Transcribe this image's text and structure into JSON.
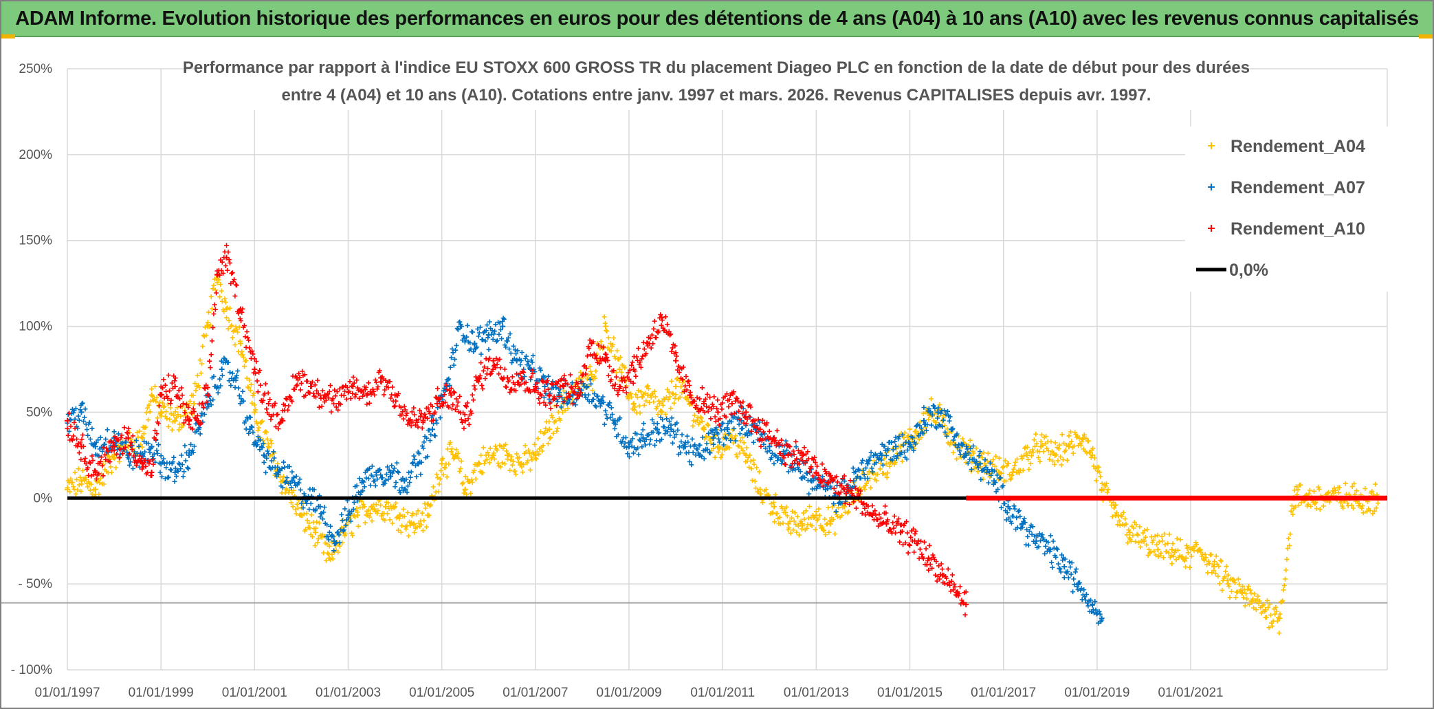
{
  "banner": {
    "title": "ADAM Informe. Evolution historique des performances en euros pour des détentions de 4 ans (A04) à 10 ans (A10) avec les revenus connus capitalisés"
  },
  "colors": {
    "A04": "#ffc000",
    "A07": "#0070c0",
    "A10": "#ff0000",
    "zero": "#000000",
    "banner": "#7dca7d"
  },
  "chart_data": {
    "type": "scatter",
    "title_line1": "Performance par rapport à l'indice EU STOXX 600 GROSS TR  du placement Diageo PLC en fonction de la date de début pour des durées",
    "title_line2": "entre 4 (A04) et 10 ans (A10). Cotations entre janv. 1997 et mars. 2026. Revenus CAPITALISES depuis avr. 1997.",
    "xlim": [
      1997.0,
      2025.2
    ],
    "ylim": [
      -100,
      250
    ],
    "x_ticks": [
      {
        "value": 1997,
        "label": "01/01/1997"
      },
      {
        "value": 1999,
        "label": "01/01/1999"
      },
      {
        "value": 2001,
        "label": "01/01/2001"
      },
      {
        "value": 2003,
        "label": "01/01/2003"
      },
      {
        "value": 2005,
        "label": "01/01/2005"
      },
      {
        "value": 2007,
        "label": "01/01/2007"
      },
      {
        "value": 2009,
        "label": "01/01/2009"
      },
      {
        "value": 2011,
        "label": "01/01/2011"
      },
      {
        "value": 2013,
        "label": "01/01/2013"
      },
      {
        "value": 2015,
        "label": "01/01/2015"
      },
      {
        "value": 2017,
        "label": "01/01/2017"
      },
      {
        "value": 2019,
        "label": "01/01/2019"
      },
      {
        "value": 2021,
        "label": "01/01/2021"
      }
    ],
    "y_ticks": [
      {
        "value": 250,
        "label": "250%"
      },
      {
        "value": 200,
        "label": "200%"
      },
      {
        "value": 150,
        "label": "150%"
      },
      {
        "value": 100,
        "label": "100%"
      },
      {
        "value": 50,
        "label": "50%"
      },
      {
        "value": 0,
        "label": "0%"
      },
      {
        "value": -50,
        "label": "- 50%"
      },
      {
        "value": -100,
        "label": "- 100%"
      }
    ],
    "series": [
      {
        "name": "Rendement_A04",
        "x": [
          1997.0,
          1997.3,
          1997.6,
          1998.0,
          1998.3,
          1998.6,
          1998.8,
          1999.0,
          1999.3,
          1999.7,
          2000.0,
          2000.2,
          2000.4,
          2000.7,
          2001.0,
          2001.3,
          2001.6,
          2002.0,
          2002.3,
          2002.6,
          2002.9,
          2003.2,
          2003.5,
          2003.8,
          2004.1,
          2004.4,
          2004.7,
          2005.0,
          2005.3,
          2005.5,
          2005.8,
          2006.1,
          2006.4,
          2006.7,
          2007.0,
          2007.3,
          2007.6,
          2007.9,
          2008.2,
          2008.5,
          2008.8,
          2009.1,
          2009.4,
          2009.7,
          2010.0,
          2010.3,
          2010.6,
          2010.9,
          2011.2,
          2011.5,
          2011.8,
          2012.1,
          2012.4,
          2012.7,
          2013.0,
          2013.3,
          2013.6,
          2013.9,
          2014.2,
          2014.5,
          2014.8,
          2015.1,
          2015.4,
          2015.7,
          2016.0,
          2016.3,
          2016.6,
          2016.9,
          2017.2,
          2017.5,
          2017.8,
          2018.1,
          2018.4,
          2018.7,
          2018.9,
          2019.1,
          2019.4,
          2019.7,
          2020.0,
          2020.3,
          2020.6,
          2020.9,
          2021.2,
          2021.5,
          2021.8,
          2022.1,
          2022.3,
          2022.6,
          2022.9,
          2023.2,
          2023.5,
          2023.8,
          2024.1,
          2024.4,
          2024.7,
          2025.0
        ],
        "y": [
          5,
          10,
          5,
          25,
          30,
          35,
          60,
          50,
          45,
          55,
          100,
          130,
          110,
          90,
          50,
          30,
          10,
          -10,
          -20,
          -35,
          -20,
          -10,
          -5,
          -5,
          -10,
          -15,
          -10,
          20,
          25,
          5,
          20,
          25,
          25,
          20,
          25,
          40,
          55,
          65,
          70,
          100,
          75,
          55,
          60,
          50,
          65,
          55,
          40,
          30,
          35,
          25,
          5,
          -5,
          -15,
          -15,
          -10,
          -15,
          -5,
          5,
          15,
          20,
          30,
          35,
          50,
          45,
          30,
          25,
          20,
          15,
          15,
          25,
          30,
          25,
          30,
          35,
          25,
          5,
          -10,
          -20,
          -25,
          -30,
          -30,
          -35,
          -30,
          -40,
          -50,
          -55,
          -60,
          -65,
          -70,
          0,
          0,
          0,
          0,
          0,
          0,
          0
        ]
      },
      {
        "name": "Rendement_A07",
        "x": [
          1997.0,
          1997.3,
          1997.6,
          1998.0,
          1998.3,
          1998.6,
          1998.8,
          1999.0,
          1999.3,
          1999.6,
          1999.8,
          2000.0,
          2000.3,
          2000.6,
          2000.9,
          2001.2,
          2001.5,
          2001.8,
          2002.1,
          2002.4,
          2002.7,
          2003.0,
          2003.3,
          2003.6,
          2003.9,
          2004.2,
          2004.5,
          2004.8,
          2005.1,
          2005.4,
          2005.7,
          2006.0,
          2006.3,
          2006.6,
          2006.9,
          2007.2,
          2007.5,
          2007.8,
          2008.1,
          2008.4,
          2008.7,
          2009.0,
          2009.3,
          2009.6,
          2009.9,
          2010.2,
          2010.5,
          2010.8,
          2011.1,
          2011.4,
          2011.7,
          2012.0,
          2012.3,
          2012.6,
          2012.9,
          2013.2,
          2013.5,
          2013.8,
          2014.1,
          2014.4,
          2014.7,
          2015.0,
          2015.3,
          2015.6,
          2015.9,
          2016.2,
          2016.5,
          2016.8,
          2017.1,
          2017.4,
          2017.7,
          2018.0,
          2018.3,
          2018.6,
          2018.9,
          2019.1
        ],
        "y": [
          45,
          50,
          30,
          35,
          25,
          25,
          30,
          20,
          15,
          25,
          40,
          55,
          75,
          70,
          40,
          25,
          15,
          10,
          0,
          -5,
          -25,
          -10,
          10,
          15,
          15,
          10,
          20,
          40,
          65,
          100,
          90,
          95,
          100,
          80,
          75,
          65,
          60,
          60,
          65,
          55,
          45,
          30,
          35,
          40,
          40,
          30,
          25,
          35,
          40,
          45,
          40,
          30,
          25,
          20,
          10,
          5,
          0,
          10,
          20,
          25,
          30,
          30,
          45,
          50,
          40,
          25,
          20,
          10,
          -5,
          -15,
          -25,
          -30,
          -40,
          -50,
          -62,
          -70
        ]
      },
      {
        "name": "Rendement_A10",
        "x": [
          1997.0,
          1997.3,
          1997.6,
          1998.0,
          1998.3,
          1998.6,
          1998.8,
          1999.0,
          1999.3,
          1999.6,
          1999.8,
          2000.0,
          2000.2,
          2000.4,
          2000.7,
          2001.0,
          2001.3,
          2001.6,
          2001.9,
          2002.2,
          2002.5,
          2002.8,
          2003.1,
          2003.4,
          2003.7,
          2004.0,
          2004.3,
          2004.6,
          2004.9,
          2005.2,
          2005.5,
          2005.8,
          2006.1,
          2006.4,
          2006.7,
          2007.0,
          2007.3,
          2007.6,
          2007.9,
          2008.2,
          2008.5,
          2008.8,
          2009.1,
          2009.4,
          2009.7,
          2010.0,
          2010.3,
          2010.6,
          2010.9,
          2011.2,
          2011.5,
          2011.8,
          2012.1,
          2012.4,
          2012.7,
          2013.0,
          2013.3,
          2013.6,
          2013.9,
          2014.2,
          2014.5,
          2014.8,
          2015.1,
          2015.4,
          2015.7,
          2016.0,
          2016.2
        ],
        "y": [
          45,
          30,
          15,
          30,
          35,
          20,
          15,
          60,
          65,
          45,
          45,
          60,
          130,
          140,
          110,
          75,
          55,
          45,
          70,
          65,
          60,
          55,
          65,
          60,
          70,
          60,
          45,
          45,
          55,
          60,
          45,
          70,
          80,
          70,
          70,
          65,
          60,
          65,
          60,
          90,
          80,
          65,
          75,
          90,
          105,
          80,
          60,
          55,
          50,
          55,
          50,
          40,
          35,
          25,
          25,
          15,
          10,
          5,
          0,
          -10,
          -15,
          -20,
          -25,
          -35,
          -45,
          -55,
          -62
        ]
      }
    ],
    "legend": [
      {
        "name": "Rendement_A04",
        "marker": "+"
      },
      {
        "name": "Rendement_A07",
        "marker": "+"
      },
      {
        "name": "Rendement_A10",
        "marker": "+"
      },
      {
        "name": "0,0%",
        "marker": "line"
      }
    ],
    "reference_line": {
      "y": 0,
      "label": "0,0%"
    },
    "red_flat_segment": {
      "x_start": 2016.2,
      "x_end": 2025.2,
      "y": 0
    }
  }
}
